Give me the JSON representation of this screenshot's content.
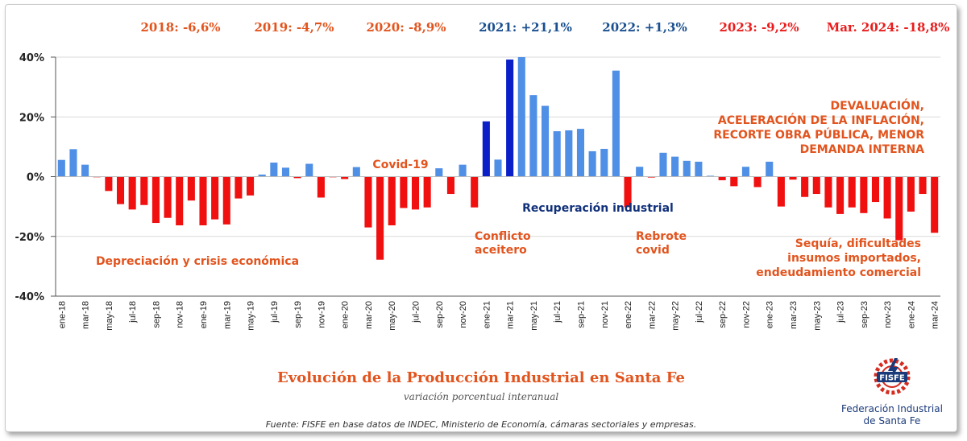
{
  "chart_data": {
    "type": "bar",
    "title": "Evolución de la Producción Industrial en Santa Fe",
    "subtitle": "variación porcentual interanual",
    "source": "Fuente: FISFE en base datos de INDEC, Ministerio de Economía, cámaras sectoriales y empresas.",
    "ylim": [
      -40,
      40
    ],
    "yticks": [
      "40%",
      "20%",
      "0%",
      "-20%",
      "-40%"
    ],
    "ytick_values": [
      40,
      20,
      0,
      -20,
      -40
    ],
    "grid": true,
    "categories": [
      "ene-18",
      "feb-18",
      "mar-18",
      "abr-18",
      "may-18",
      "jun-18",
      "jul-18",
      "ago-18",
      "sep-18",
      "oct-18",
      "nov-18",
      "dic-18",
      "ene-19",
      "feb-19",
      "mar-19",
      "abr-19",
      "may-19",
      "jun-19",
      "jul-19",
      "ago-19",
      "sep-19",
      "oct-19",
      "nov-19",
      "dic-19",
      "ene-20",
      "feb-20",
      "mar-20",
      "abr-20",
      "may-20",
      "jun-20",
      "jul-20",
      "ago-20",
      "sep-20",
      "oct-20",
      "nov-20",
      "dic-20",
      "ene-21",
      "feb-21",
      "mar-21",
      "abr-21",
      "may-21",
      "jun-21",
      "jul-21",
      "ago-21",
      "sep-21",
      "oct-21",
      "nov-21",
      "dic-21",
      "ene-22",
      "feb-22",
      "mar-22",
      "abr-22",
      "may-22",
      "jun-22",
      "jul-22",
      "ago-22",
      "sep-22",
      "oct-22",
      "nov-22",
      "dic-22",
      "ene-23",
      "feb-23",
      "mar-23",
      "abr-23",
      "may-23",
      "jun-23",
      "jul-23",
      "ago-23",
      "sep-23",
      "oct-23",
      "nov-23",
      "dic-23",
      "ene-24",
      "feb-24",
      "mar-24"
    ],
    "values": [
      5.6,
      9.2,
      4.0,
      -0.2,
      -4.8,
      -9.2,
      -11.0,
      -9.5,
      -15.5,
      -13.8,
      -16.3,
      -8.0,
      -16.3,
      -14.3,
      -16.0,
      -7.3,
      -6.3,
      0.7,
      4.7,
      3.0,
      -0.5,
      4.3,
      -7.0,
      -0.2,
      -0.8,
      3.2,
      -17.0,
      -27.8,
      -16.3,
      -10.5,
      -11.0,
      -10.3,
      2.8,
      -5.8,
      4.0,
      -10.3,
      18.5,
      5.7,
      39.2,
      40.0,
      27.3,
      23.7,
      15.2,
      15.5,
      16.0,
      8.5,
      9.3,
      35.5,
      -10.2,
      3.3,
      -0.3,
      8.0,
      6.7,
      5.3,
      5.0,
      0.3,
      -1.2,
      -3.2,
      3.3,
      -3.5,
      5.0,
      -10.0,
      -1.0,
      -6.8,
      -5.8,
      -10.3,
      -12.5,
      -10.3,
      -12.2,
      -8.5,
      -14.0,
      -21.3,
      -11.7,
      -5.8,
      -18.8
    ],
    "highlight_indices": [
      36,
      38
    ],
    "colors": {
      "positive": "#4f8fe6",
      "negative": "#f01010",
      "highlight": "#0a1fc8",
      "grid": "#d9d9d9",
      "axis": "#555555"
    },
    "x_labels": [
      {
        "index": 0,
        "label": "ene-18"
      },
      {
        "index": 2,
        "label": "mar-18"
      },
      {
        "index": 4,
        "label": "may-18"
      },
      {
        "index": 6,
        "label": "jul-18"
      },
      {
        "index": 8,
        "label": "sep-18"
      },
      {
        "index": 10,
        "label": "nov-18"
      },
      {
        "index": 12,
        "label": "ene-19"
      },
      {
        "index": 14,
        "label": "mar-19"
      },
      {
        "index": 16,
        "label": "may-19"
      },
      {
        "index": 18,
        "label": "jul-19"
      },
      {
        "index": 20,
        "label": "sep-19"
      },
      {
        "index": 22,
        "label": "nov-19"
      },
      {
        "index": 24,
        "label": "ene-20"
      },
      {
        "index": 26,
        "label": "mar-20"
      },
      {
        "index": 28,
        "label": "may-20"
      },
      {
        "index": 30,
        "label": "jul-20"
      },
      {
        "index": 32,
        "label": "sep-20"
      },
      {
        "index": 34,
        "label": "nov-20"
      },
      {
        "index": 36,
        "label": "ene-21"
      },
      {
        "index": 38,
        "label": "mar-21"
      },
      {
        "index": 40,
        "label": "may-21"
      },
      {
        "index": 42,
        "label": "jul-21"
      },
      {
        "index": 44,
        "label": "sep-21"
      },
      {
        "index": 46,
        "label": "nov-21"
      },
      {
        "index": 48,
        "label": "ene-22"
      },
      {
        "index": 50,
        "label": "mar-22"
      },
      {
        "index": 52,
        "label": "may-22"
      },
      {
        "index": 54,
        "label": "jul-22"
      },
      {
        "index": 56,
        "label": "sep-22"
      },
      {
        "index": 58,
        "label": "nov-22"
      },
      {
        "index": 60,
        "label": "ene-23"
      },
      {
        "index": 62,
        "label": "mar-23"
      },
      {
        "index": 64,
        "label": "may-23"
      },
      {
        "index": 66,
        "label": "jul-23"
      },
      {
        "index": 68,
        "label": "sep-23"
      },
      {
        "index": 70,
        "label": "nov-23"
      },
      {
        "index": 72,
        "label": "ene-24"
      },
      {
        "index": 74,
        "label": "mar-24"
      }
    ],
    "year_summaries": [
      {
        "name": "year-2018",
        "text": "2018: -6,6%",
        "color": "#e2541e"
      },
      {
        "name": "year-2019",
        "text": "2019: -4,7%",
        "color": "#e2541e"
      },
      {
        "name": "year-2020",
        "text": "2020: -8,9%",
        "color": "#e2541e"
      },
      {
        "name": "year-2021",
        "text": "2021: +21,1%",
        "color": "#1a4f8f"
      },
      {
        "name": "year-2022",
        "text": "2022: +1,3%",
        "color": "#1a4f8f"
      },
      {
        "name": "year-2023",
        "text": "2023: -9,2%",
        "color": "#ea1c1c"
      },
      {
        "name": "year-mar-2024",
        "text": "Mar. 2024: -18,8%",
        "color": "#ea1c1c"
      }
    ],
    "annotations": [
      {
        "name": "annotation-depreciacion",
        "lines": [
          "Depreciación y crisis económica"
        ],
        "color": "#e2541e",
        "anchor": "middle"
      },
      {
        "name": "annotation-covid",
        "lines": [
          "Covid-19"
        ],
        "color": "#e2541e",
        "anchor": "middle"
      },
      {
        "name": "annotation-conflicto",
        "lines": [
          "Conflicto",
          "aceitero"
        ],
        "color": "#e2541e",
        "anchor": "start"
      },
      {
        "name": "annotation-recuperacion",
        "lines": [
          "Recuperación industrial"
        ],
        "color": "#10307a",
        "anchor": "middle"
      },
      {
        "name": "annotation-rebrote",
        "lines": [
          "Rebrote",
          "covid"
        ],
        "color": "#e2541e",
        "anchor": "start"
      },
      {
        "name": "annotation-devaluacion",
        "lines": [
          "DEVALUACIÓN,",
          "ACELERACIÓN DE LA INFLACIÓN,",
          "RECORTE OBRA PÚBLICA, MENOR",
          "DEMANDA INTERNA"
        ],
        "color": "#e2541e",
        "anchor": "end"
      },
      {
        "name": "annotation-sequia",
        "lines": [
          "Sequía, dificultades",
          "insumos importados,",
          "endeudamiento comercial"
        ],
        "color": "#e2541e",
        "anchor": "end"
      }
    ]
  },
  "logo": {
    "badge_text": "FISFE",
    "name_line1": "Federación Industrial",
    "name_line2": "de Santa Fe",
    "colors": {
      "red": "#d62b1f",
      "blue": "#1a3a7a"
    }
  }
}
